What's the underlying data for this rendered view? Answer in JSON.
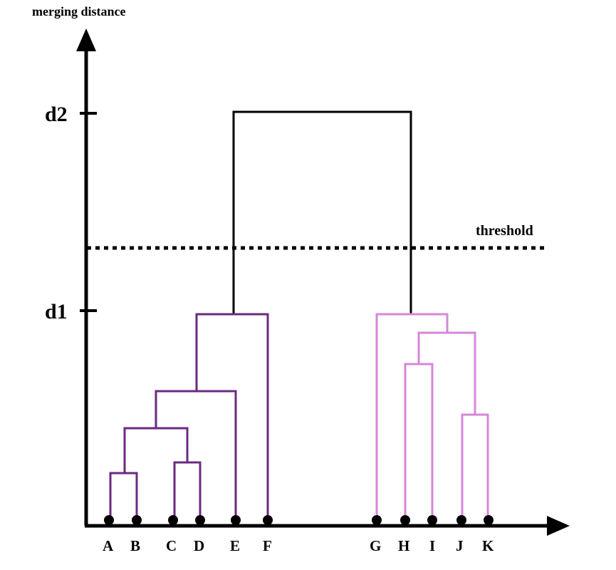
{
  "diagram": {
    "axis_title": "merging distance",
    "threshold_label": "threshold",
    "ticks": [
      {
        "id": "d1",
        "label": "d1"
      },
      {
        "id": "d2",
        "label": "d2"
      }
    ],
    "leaves": [
      {
        "id": "A",
        "label": "A",
        "group": "left"
      },
      {
        "id": "B",
        "label": "B",
        "group": "left"
      },
      {
        "id": "C",
        "label": "C",
        "group": "left"
      },
      {
        "id": "D",
        "label": "D",
        "group": "left"
      },
      {
        "id": "E",
        "label": "E",
        "group": "left"
      },
      {
        "id": "F",
        "label": "F",
        "group": "left"
      },
      {
        "id": "G",
        "label": "G",
        "group": "right"
      },
      {
        "id": "H",
        "label": "H",
        "group": "right"
      },
      {
        "id": "I",
        "label": "I",
        "group": "right"
      },
      {
        "id": "J",
        "label": "J",
        "group": "right"
      },
      {
        "id": "K",
        "label": "K",
        "group": "right"
      }
    ],
    "colors": {
      "axis": "#000000",
      "left_cluster": "#6b2a7f",
      "right_cluster": "#d687d8",
      "root": "#000000"
    }
  }
}
